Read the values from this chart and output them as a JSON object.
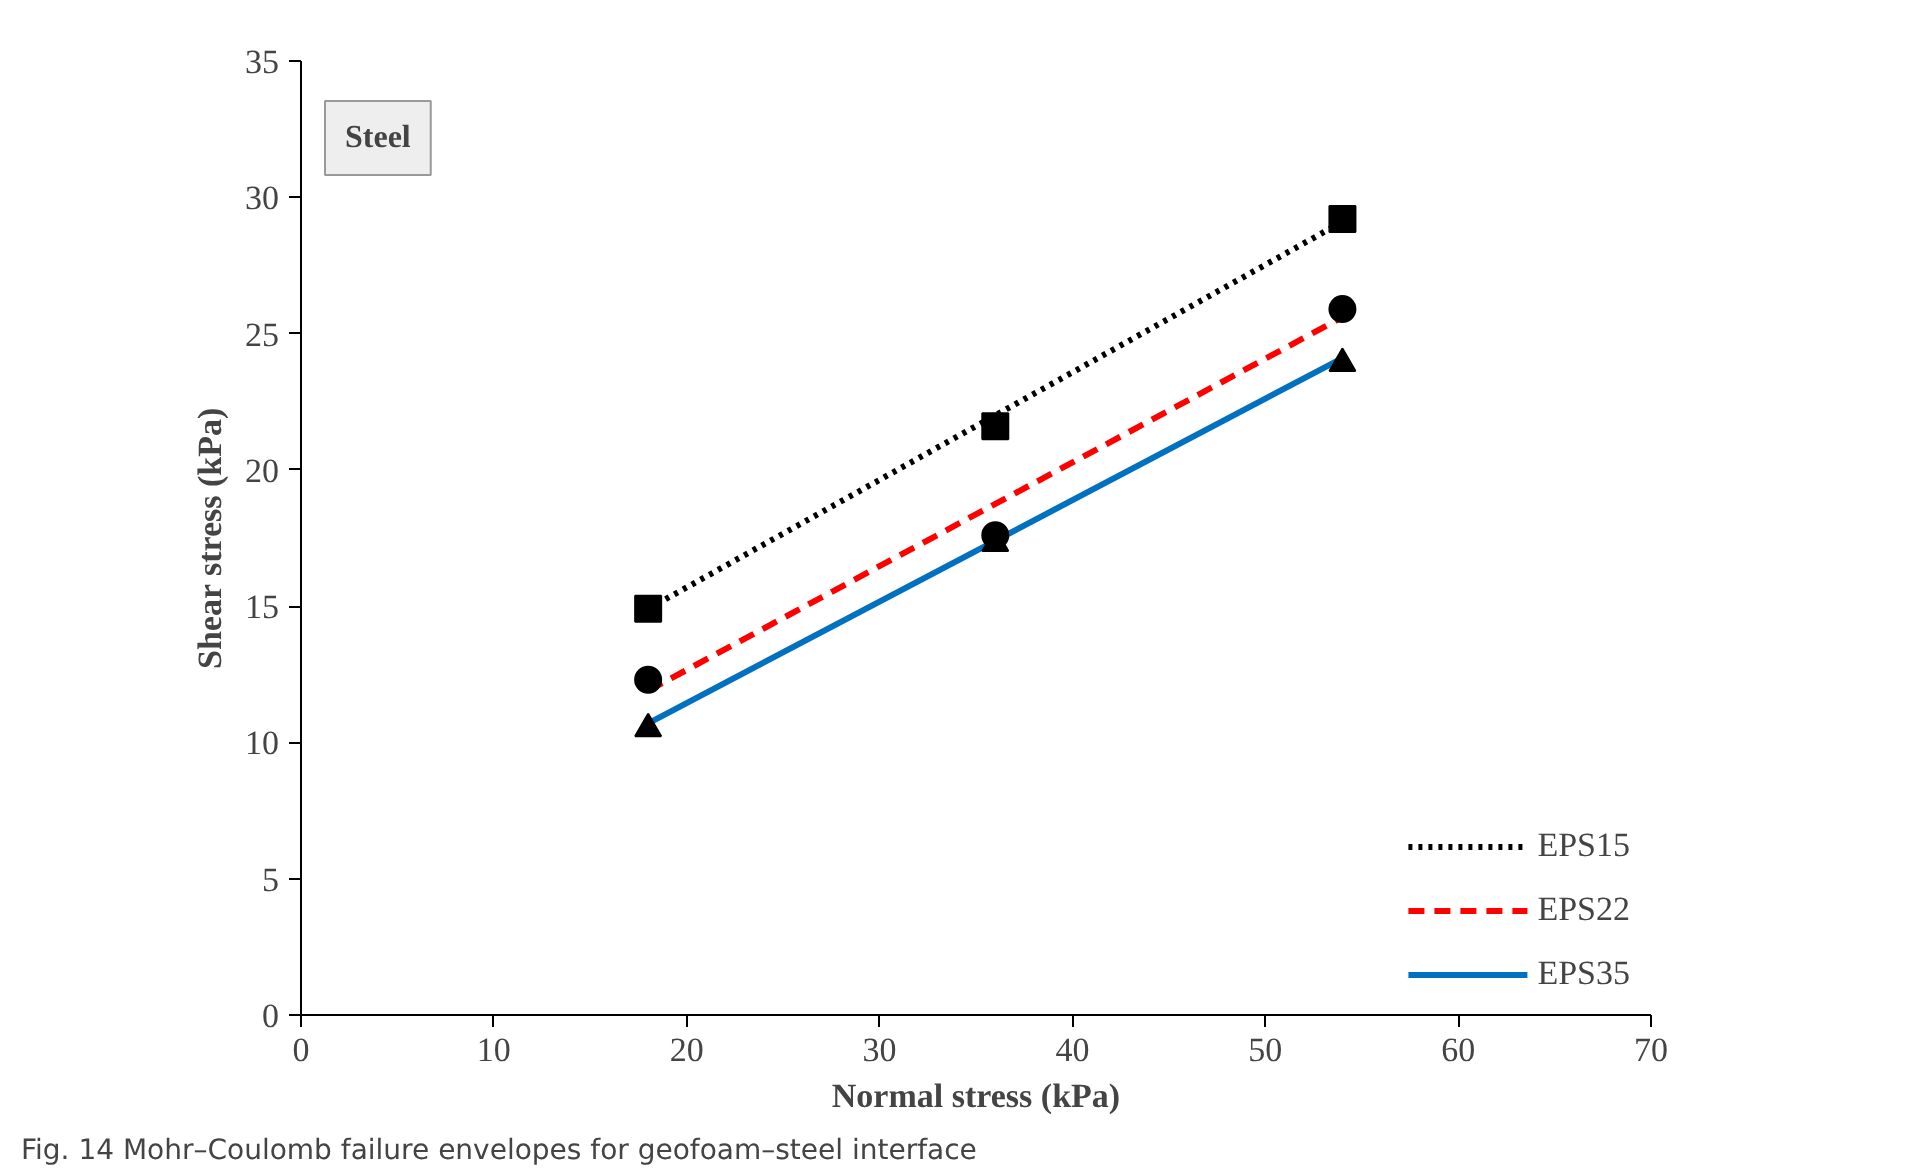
{
  "chart_data": {
    "type": "scatter",
    "xlabel": "Normal stress (kPa)",
    "ylabel": "Shear stress (kPa)",
    "xlim": [
      0,
      70
    ],
    "ylim": [
      0,
      35
    ],
    "xticks": [
      0,
      10,
      20,
      30,
      40,
      50,
      60,
      70
    ],
    "yticks": [
      0,
      5,
      10,
      15,
      20,
      25,
      30,
      35
    ],
    "grid": false,
    "legend": "bottom right",
    "series": [
      {
        "marker": "square",
        "color": "#000000",
        "x": [
          18,
          36,
          54
        ],
        "values": [
          14.9,
          21.6,
          29.2
        ]
      },
      {
        "marker": "circle",
        "color": "#000000",
        "x": [
          18,
          36,
          54
        ],
        "values": [
          12.3,
          17.6,
          25.9
        ]
      },
      {
        "marker": "triangle",
        "color": "#000000",
        "x": [
          18,
          36,
          54
        ],
        "values": [
          10.5,
          17.3,
          23.9
        ]
      },
      {
        "type": "line",
        "name": "EPS15",
        "line_style": "dotted",
        "color": "#000000",
        "x": [
          18,
          54
        ],
        "values": [
          14.9,
          29.1
        ]
      },
      {
        "type": "line",
        "name": "EPS22",
        "line_style": "dashed",
        "color": "#ff0000",
        "x": [
          18,
          54
        ],
        "values": [
          11.9,
          25.6
        ]
      },
      {
        "type": "line",
        "name": "EPS35",
        "line_style": "solid",
        "color": "#0070c0",
        "x": [
          18,
          54
        ],
        "values": [
          10.7,
          24.1
        ]
      }
    ],
    "annotations": [
      "Steel",
      "Fig. 14  Mohr–Coulomb failure envelopes for geofoam–steel interface"
    ]
  }
}
